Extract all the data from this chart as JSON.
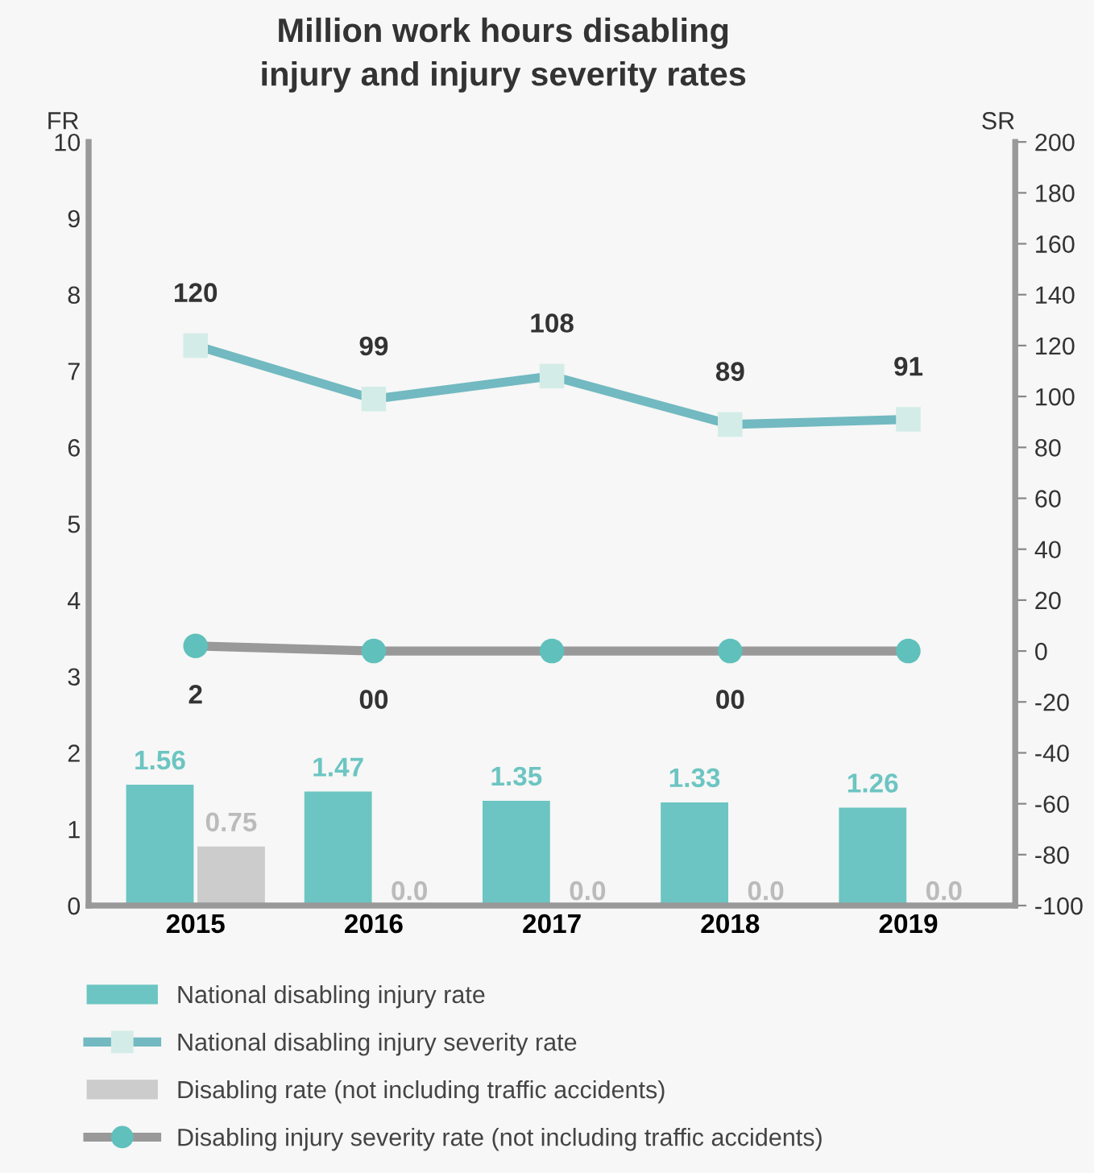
{
  "chart_data": {
    "type": "bar",
    "title": "Million work hours disabling\ninjury and injury severity rates",
    "ylabel": "FR",
    "y2label": "SR",
    "categories": [
      "2015",
      "2016",
      "2017",
      "2018",
      "2019"
    ],
    "series": [
      {
        "name": "National disabling injury rate",
        "color": "#6cc5c2",
        "values": [
          1.56,
          1.47,
          1.35,
          1.33,
          1.26
        ],
        "value_labels": [
          "1.56",
          "1.47",
          "1.35",
          "1.33",
          "1.26"
        ]
      },
      {
        "name": "National disabling injury severity rate",
        "type": "line",
        "axis": "y2",
        "marker": "square",
        "color": "#72b9c1",
        "values": [
          120,
          99,
          108,
          89,
          91
        ],
        "value_labels": [
          "120",
          "99",
          "108",
          "89",
          "91"
        ]
      },
      {
        "name": "Disabling rate (not including traffic accidents)",
        "color": "#cccccc",
        "values": [
          0.75,
          0,
          0,
          0,
          0
        ],
        "value_labels": [
          "0.75",
          "0.0",
          "0.0",
          "0.0",
          "0.0"
        ]
      },
      {
        "name": "Disabling injury severity rate (not including traffic accidents)",
        "type": "line",
        "axis": "y2",
        "marker": "circle",
        "color": "#999999",
        "values": [
          2,
          0,
          0,
          0,
          0
        ],
        "value_labels": [
          "2",
          "00",
          null,
          "00",
          null
        ]
      }
    ],
    "ylim": [
      0,
      10
    ],
    "yticks": [
      0,
      1,
      2,
      3,
      4,
      5,
      6,
      7,
      8,
      9,
      10
    ],
    "y2lim": [
      -100,
      200
    ],
    "y2ticks": [
      -100,
      -80,
      -60,
      -40,
      -20,
      0,
      20,
      40,
      60,
      80,
      100,
      120,
      140,
      160,
      180,
      200
    ],
    "grid": false,
    "legend": "bottom"
  }
}
